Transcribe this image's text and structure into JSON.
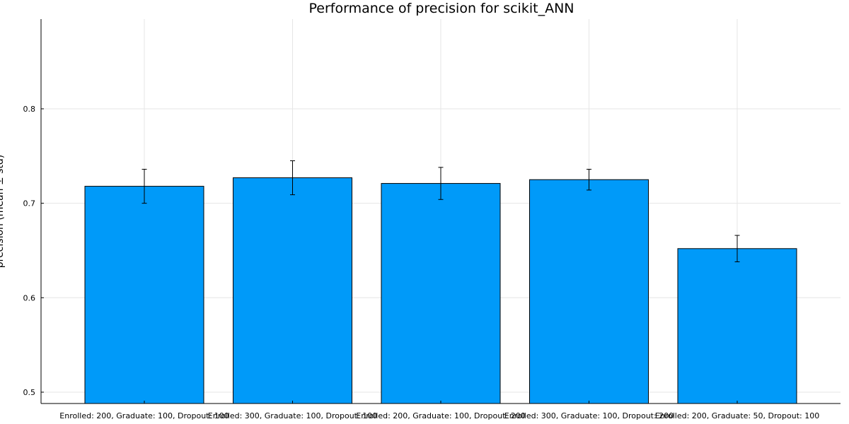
{
  "chart_data": {
    "type": "bar",
    "title": "Performance of precision for scikit_ANN",
    "xlabel": "",
    "ylabel": "precision (mean ± std)",
    "categories": [
      "Enrolled: 200, Graduate: 100, Dropout: 100",
      "Enrolled: 300, Graduate: 100, Dropout: 100",
      "Enrolled: 200, Graduate: 100, Dropout: 200",
      "Enrolled: 300, Graduate: 100, Dropout: 200",
      "Enrolled: 200, Graduate: 50, Dropout: 100"
    ],
    "values": [
      0.718,
      0.727,
      0.721,
      0.725,
      0.652
    ],
    "errors": [
      0.018,
      0.018,
      0.017,
      0.011,
      0.014
    ],
    "ylim": [
      0.488,
      0.895
    ],
    "yticks": [
      0.5,
      0.6,
      0.7,
      0.8
    ],
    "ytick_labels": [
      "0.5",
      "0.6",
      "0.7",
      "0.8"
    ],
    "grid": true,
    "legend": "none",
    "bar_color": "#009af9",
    "edge_color": "#000000"
  }
}
